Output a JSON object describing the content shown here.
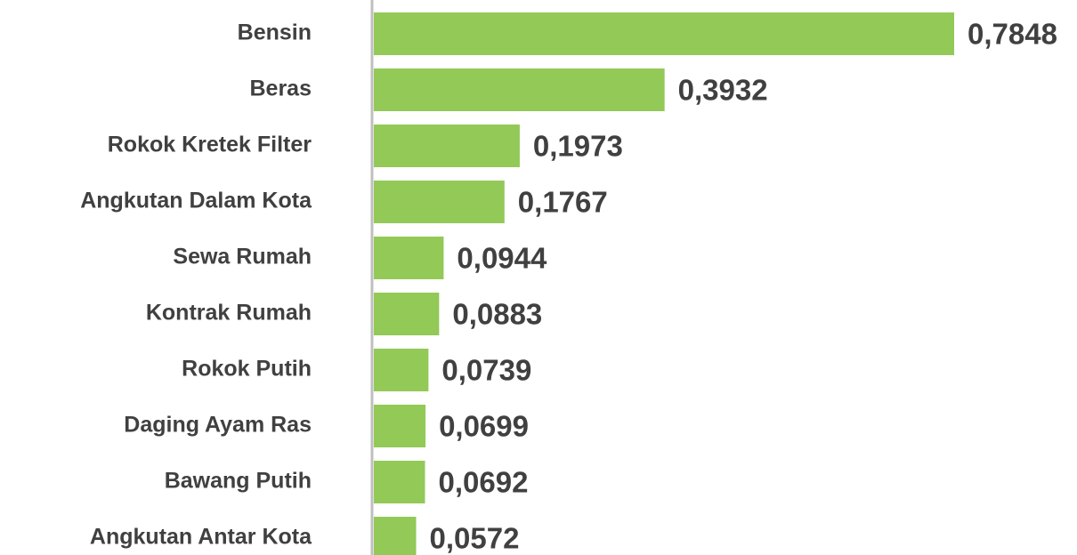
{
  "chart_data": {
    "type": "bar",
    "orientation": "horizontal",
    "categories": [
      "Bensin",
      "Beras",
      "Rokok Kretek Filter",
      "Angkutan Dalam Kota",
      "Sewa Rumah",
      "Kontrak Rumah",
      "Rokok Putih",
      "Daging Ayam Ras",
      "Bawang Putih",
      "Angkutan Antar Kota"
    ],
    "values": [
      0.7848,
      0.3932,
      0.1973,
      0.1767,
      0.0944,
      0.0883,
      0.0739,
      0.0699,
      0.0692,
      0.0572
    ],
    "value_labels": [
      "0,7848",
      "0,3932",
      "0,1973",
      "0,1767",
      "0,0944",
      "0,0883",
      "0,0739",
      "0,0699",
      "0,0692",
      "0,0572"
    ],
    "color": "#92c957"
  }
}
